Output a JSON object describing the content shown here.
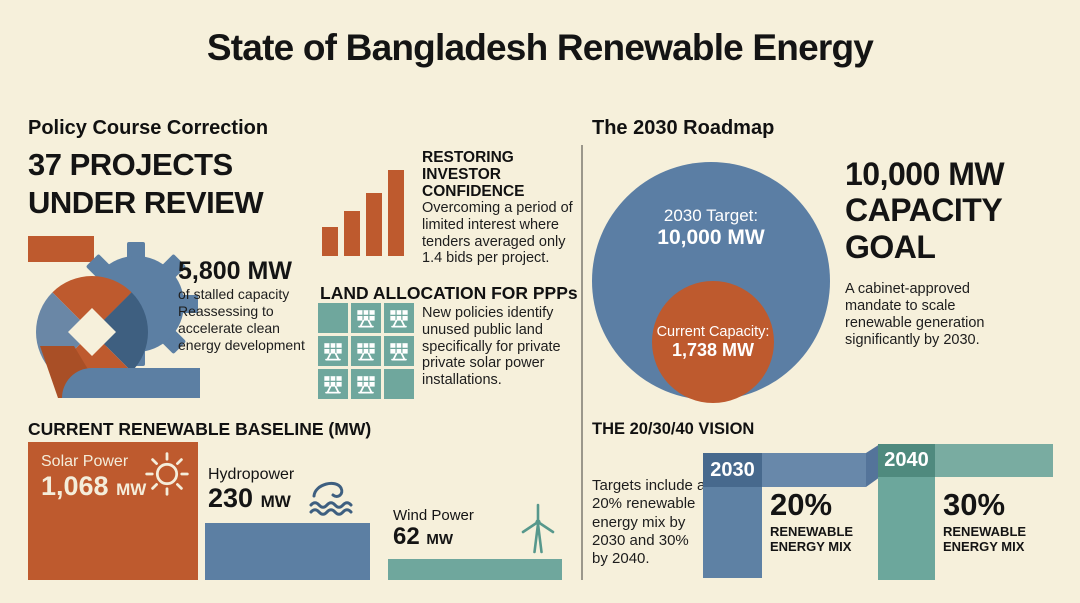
{
  "title": "State of Bangladesh Renewable Energy",
  "left": {
    "section_title": "Policy Course Correction",
    "headline": "37 PROJECTS\nUNDER REVIEW",
    "stalled": {
      "value": "5,800 MW",
      "desc": "of stalled capacity\nReassessing to\naccelerate clean\nenergy development"
    },
    "investor": {
      "title": "RESTORING\nINVESTOR\nCONFIDENCE",
      "body": "Overcoming a period of limited interest where tenders averaged only 1.4 bids per project."
    },
    "land": {
      "title": "LAND ALLOCATION FOR PPPs",
      "body": "New policies identify unused public land specifically for private private solar power installations.",
      "grid": {
        "rows": 3,
        "cols": 3,
        "empty_cells": [
          0,
          8
        ]
      }
    },
    "baseline": {
      "title": "CURRENT RENEWABLE BASELINE (MW)",
      "solar": {
        "label": "Solar Power",
        "value": "1,068",
        "unit": "MW"
      },
      "hydro": {
        "label": "Hydropower",
        "value": "230",
        "unit": "MW"
      },
      "wind": {
        "label": "Wind Power",
        "value": "62",
        "unit": "MW"
      }
    }
  },
  "right": {
    "section_title": "The 2030 Roadmap",
    "target_circle": {
      "label": "2030 Target:",
      "value": "10,000 MW"
    },
    "current_circle": {
      "label": "Current Capacity:",
      "value": "1,738 MW"
    },
    "goal": {
      "headline": "10,000 MW\nCAPACITY\nGOAL",
      "body": "A cabinet-approved mandate to scale renewable generation significantly by 2030."
    },
    "vision": {
      "title": "THE 20/30/40 VISION",
      "body": "Targets include a 20% renewable energy mix by 2030 and 30% by 2040.",
      "items": [
        {
          "year": "2030",
          "pct": "20%",
          "label": "RENEWABLE\nENERGY MIX"
        },
        {
          "year": "2040",
          "pct": "30%",
          "label": "RENEWABLE\nENERGY MIX"
        }
      ]
    }
  },
  "icons": {
    "gear": "gear-graphic",
    "rising_bars": "rising-bars-icon",
    "solar_panel": "solar-panel-icon",
    "sun": "sun-icon",
    "wave": "wave-icon",
    "wind_turbine": "wind-turbine-icon"
  },
  "colors": {
    "background": "#F6F0DB",
    "accent_orange": "#BE5A2E",
    "accent_blue": "#5C7FA3",
    "accent_teal": "#6FA79D",
    "dark_navy": "#3E5F80",
    "label_blue": "#47698D",
    "label_teal": "#4F8A7E",
    "cream_text": "#F4EDDA",
    "ink": "#141414"
  },
  "chart_data": [
    {
      "type": "bar",
      "title": "Restoring investor confidence — rising tender interest (unlabeled trend)",
      "categories": [
        "",
        "",
        "",
        ""
      ],
      "values_relative_pct": [
        34,
        52,
        73,
        100
      ],
      "note": "Four rising bars; tenders averaged only 1.4 bids per project during the downturn.",
      "axes": false,
      "grid": false,
      "legend": false
    },
    {
      "type": "bar",
      "title": "Current Renewable Baseline (MW)",
      "categories": [
        "Solar Power",
        "Hydropower",
        "Wind Power"
      ],
      "values": [
        1068,
        230,
        62
      ],
      "unit": "MW",
      "data_labels": [
        "1,068 MW",
        "230 MW",
        "62 MW"
      ]
    },
    {
      "type": "bar",
      "render": "nested-proportional-circles",
      "title": "The 2030 Roadmap — capacity",
      "categories": [
        "2030 Target",
        "Current Capacity"
      ],
      "values": [
        10000,
        1738
      ],
      "unit": "MW"
    },
    {
      "type": "bar",
      "title": "The 20/30/40 Vision — renewable energy mix targets",
      "categories": [
        "2030",
        "2040"
      ],
      "values": [
        20,
        30
      ],
      "unit": "%"
    }
  ]
}
